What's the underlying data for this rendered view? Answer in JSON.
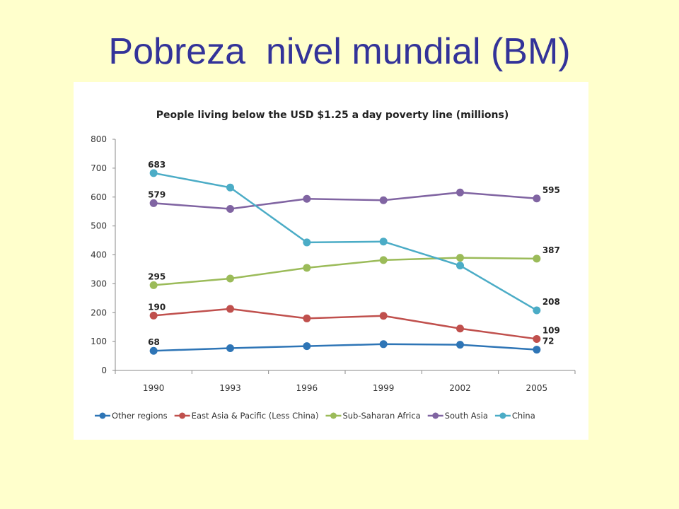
{
  "slide": {
    "title": "Pobreza  nivel mundial (BM)",
    "background": "#ffffcc",
    "title_color": "#333399"
  },
  "chart_data": {
    "type": "line",
    "title": "People living below the USD $1.25 a day poverty line (millions)",
    "xlabel": "",
    "ylabel": "",
    "categories": [
      "1990",
      "1993",
      "1996",
      "1999",
      "2002",
      "2005"
    ],
    "ylim": [
      0,
      800
    ],
    "yticks": [
      0,
      100,
      200,
      300,
      400,
      500,
      600,
      700,
      800
    ],
    "grid": false,
    "legend_position": "bottom",
    "series": [
      {
        "name": "Other regions",
        "color": "#2e75b6",
        "values": [
          68,
          77,
          84,
          91,
          89,
          72
        ],
        "labels": {
          "0": "68",
          "5": "72"
        }
      },
      {
        "name": "East Asia & Pacific (Less China)",
        "color": "#c0504d",
        "values": [
          190,
          213,
          180,
          189,
          145,
          109
        ],
        "labels": {
          "0": "190",
          "5": "109"
        }
      },
      {
        "name": "Sub-Saharan Africa",
        "color": "#9bbb59",
        "values": [
          295,
          318,
          355,
          382,
          390,
          387
        ],
        "labels": {
          "0": "295",
          "5": "387"
        }
      },
      {
        "name": "South Asia",
        "color": "#8064a2",
        "values": [
          579,
          559,
          594,
          589,
          616,
          595
        ],
        "labels": {
          "0": "579",
          "5": "595"
        }
      },
      {
        "name": "China",
        "color": "#4bacc6",
        "values": [
          683,
          633,
          443,
          446,
          363,
          208
        ],
        "labels": {
          "0": "683",
          "5": "208"
        }
      }
    ]
  }
}
